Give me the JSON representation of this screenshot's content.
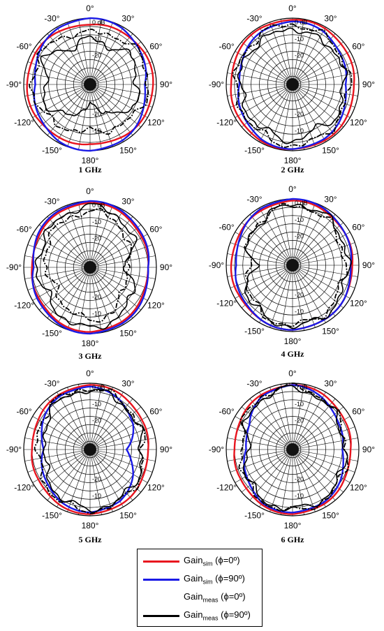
{
  "chart_data": [
    {
      "type": "polar",
      "caption": "1 GHz",
      "angle_ticks": [
        "0°",
        "30°",
        "60°",
        "90°",
        "120°",
        "150°",
        "180°",
        "-150°",
        "-120°",
        "-90°",
        "-60°",
        "-30°"
      ],
      "radial_ticks": [
        "0 dB",
        "-10",
        "-20"
      ],
      "rlim": [
        -40,
        0
      ],
      "series": [
        {
          "name": "Gainsim (φ=0°)",
          "samples_deg": [
            0,
            30,
            60,
            90,
            120,
            150,
            180,
            210,
            240,
            270,
            300,
            330
          ],
          "values_db": [
            -4,
            -3,
            -2,
            -2,
            -2,
            -3,
            -4,
            -3,
            -2,
            -2,
            -2,
            -3
          ]
        },
        {
          "name": "Gainsim (φ=90°)",
          "samples_deg": [
            0,
            30,
            60,
            90,
            120,
            150,
            180,
            210,
            240,
            270,
            300,
            330
          ],
          "values_db": [
            0,
            -1,
            -4,
            -7,
            -4,
            -1,
            0,
            -1,
            -4,
            -7,
            -4,
            -1
          ]
        },
        {
          "name": "Gainmeas (φ=0°)",
          "samples_deg": [
            0,
            30,
            60,
            90,
            120,
            150,
            180,
            210,
            240,
            270,
            300,
            330
          ],
          "values_db": [
            -9,
            -7,
            -5,
            -5,
            -7,
            -10,
            -12,
            -10,
            -7,
            -5,
            -5,
            -7
          ]
        },
        {
          "name": "Gainmeas (φ=90°)",
          "samples_deg": [
            0,
            30,
            60,
            90,
            120,
            150,
            180,
            210,
            240,
            270,
            300,
            330
          ],
          "values_db": [
            -12,
            -15,
            -9,
            -13,
            -9,
            -22,
            -28,
            -20,
            -10,
            -14,
            -8,
            -16
          ]
        }
      ]
    },
    {
      "type": "polar",
      "caption": "2 GHz",
      "angle_ticks": [
        "0°",
        "30°",
        "60°",
        "90°",
        "120°",
        "150°",
        "180°",
        "-150°",
        "-120°",
        "-90°",
        "-60°",
        "-30°"
      ],
      "radial_ticks": [
        "0 dB",
        "-10",
        "-20"
      ],
      "rlim": [
        -40,
        0
      ],
      "series": [
        {
          "name": "Gainsim (φ=0°)",
          "samples_deg": [
            0,
            30,
            60,
            90,
            120,
            150,
            180,
            210,
            240,
            270,
            300,
            330
          ],
          "values_db": [
            -1,
            -1,
            -2,
            -3,
            -2,
            -1,
            -1,
            -1,
            -2,
            -3,
            -2,
            -1
          ]
        },
        {
          "name": "Gainsim (φ=90°)",
          "samples_deg": [
            0,
            30,
            60,
            90,
            120,
            150,
            180,
            210,
            240,
            270,
            300,
            330
          ],
          "values_db": [
            -2,
            -3,
            -6,
            -8,
            -5,
            -2,
            -1,
            -2,
            -5,
            -8,
            -6,
            -3
          ]
        },
        {
          "name": "Gainmeas (φ=0°)",
          "samples_deg": [
            0,
            30,
            60,
            90,
            120,
            150,
            180,
            210,
            240,
            270,
            300,
            330
          ],
          "values_db": [
            -4,
            -5,
            -6,
            -6,
            -6,
            -4,
            -3,
            -5,
            -6,
            -5,
            -6,
            -4
          ]
        },
        {
          "name": "Gainmeas (φ=90°)",
          "samples_deg": [
            0,
            30,
            60,
            90,
            120,
            150,
            180,
            210,
            240,
            270,
            300,
            330
          ],
          "values_db": [
            -6,
            -9,
            -7,
            -10,
            -7,
            -10,
            -6,
            -8,
            -8,
            -9,
            -7,
            -8
          ]
        }
      ]
    },
    {
      "type": "polar",
      "caption": "3 GHz",
      "angle_ticks": [
        "0°",
        "30°",
        "60°",
        "90°",
        "120°",
        "150°",
        "180°",
        "-150°",
        "-120°",
        "-90°",
        "-60°",
        "-30°"
      ],
      "radial_ticks": [
        "0 dB",
        "-10",
        "-20"
      ],
      "rlim": [
        -40,
        0
      ],
      "series": [
        {
          "name": "Gainsim (φ=0°)",
          "samples_deg": [
            0,
            30,
            60,
            90,
            120,
            150,
            180,
            210,
            240,
            270,
            300,
            330
          ],
          "values_db": [
            -1,
            -2,
            -4,
            -5,
            -4,
            -2,
            -1,
            -2,
            -4,
            -5,
            -4,
            -2
          ]
        },
        {
          "name": "Gainsim (φ=90°)",
          "samples_deg": [
            0,
            30,
            60,
            90,
            120,
            150,
            180,
            210,
            240,
            270,
            300,
            330
          ],
          "values_db": [
            0,
            -1,
            -3,
            -5,
            -3,
            -1,
            0,
            -1,
            -3,
            -6,
            -3,
            -1
          ]
        },
        {
          "name": "Gainmeas (φ=0°)",
          "samples_deg": [
            0,
            30,
            60,
            90,
            120,
            150,
            180,
            210,
            240,
            270,
            300,
            330
          ],
          "values_db": [
            -6,
            -8,
            -14,
            -16,
            -18,
            -10,
            -8,
            -12,
            -16,
            -14,
            -10,
            -8
          ]
        },
        {
          "name": "Gainmeas (φ=90°)",
          "samples_deg": [
            0,
            30,
            60,
            90,
            120,
            150,
            180,
            210,
            240,
            270,
            300,
            330
          ],
          "values_db": [
            -3,
            -5,
            -10,
            -20,
            -10,
            -6,
            -3,
            -6,
            -10,
            -8,
            -8,
            -5
          ]
        }
      ]
    },
    {
      "type": "polar",
      "caption": "4 GHz",
      "angle_ticks": [
        "0°",
        "30°",
        "60°",
        "90°",
        "120°",
        "150°",
        "180°",
        "-150°",
        "-120°",
        "-90°",
        "-60°",
        "-30°"
      ],
      "radial_ticks": [
        "0 dB",
        "-10",
        "-20"
      ],
      "rlim": [
        -40,
        0
      ],
      "series": [
        {
          "name": "Gainsim (φ=0°)",
          "samples_deg": [
            0,
            30,
            60,
            90,
            120,
            150,
            180,
            210,
            240,
            270,
            300,
            330
          ],
          "values_db": [
            -1,
            -2,
            -3,
            -4,
            -3,
            -2,
            -1,
            -2,
            -3,
            -3,
            -3,
            -2
          ]
        },
        {
          "name": "Gainsim (φ=90°)",
          "samples_deg": [
            0,
            30,
            60,
            90,
            120,
            150,
            180,
            210,
            240,
            270,
            300,
            330
          ],
          "values_db": [
            0,
            -1,
            -3,
            -5,
            -3,
            -2,
            -1,
            -2,
            -4,
            -6,
            -4,
            -1
          ]
        },
        {
          "name": "Gainmeas (φ=0°)",
          "samples_deg": [
            0,
            30,
            60,
            90,
            120,
            150,
            180,
            210,
            240,
            270,
            300,
            330
          ],
          "values_db": [
            -4,
            -5,
            -8,
            -9,
            -8,
            -5,
            -4,
            -5,
            -10,
            -14,
            -10,
            -6
          ]
        },
        {
          "name": "Gainmeas (φ=90°)",
          "samples_deg": [
            0,
            30,
            60,
            90,
            120,
            150,
            180,
            210,
            240,
            270,
            300,
            330
          ],
          "values_db": [
            -3,
            -4,
            -6,
            -7,
            -6,
            -4,
            -3,
            -5,
            -8,
            -18,
            -9,
            -7
          ]
        }
      ]
    },
    {
      "type": "polar",
      "caption": "5 GHz",
      "angle_ticks": [
        "0°",
        "30°",
        "60°",
        "90°",
        "120°",
        "150°",
        "180°",
        "-150°",
        "-120°",
        "-90°",
        "-60°",
        "-30°"
      ],
      "radial_ticks": [
        "0 dB",
        "-10",
        "-20"
      ],
      "rlim": [
        -40,
        0
      ],
      "series": [
        {
          "name": "Gainsim (φ=0°)",
          "samples_deg": [
            0,
            30,
            60,
            90,
            120,
            150,
            180,
            210,
            240,
            270,
            300,
            330
          ],
          "values_db": [
            -1,
            -2,
            -4,
            -5,
            -4,
            -2,
            -1,
            -2,
            -4,
            -5,
            -4,
            -2
          ]
        },
        {
          "name": "Gainsim (φ=90°)",
          "samples_deg": [
            0,
            30,
            60,
            90,
            120,
            150,
            180,
            210,
            240,
            270,
            300,
            330
          ],
          "values_db": [
            -2,
            -5,
            -10,
            -18,
            -10,
            -4,
            -2,
            -4,
            -8,
            -12,
            -7,
            -3
          ]
        },
        {
          "name": "Gainmeas (φ=0°)",
          "samples_deg": [
            0,
            30,
            60,
            90,
            120,
            150,
            180,
            210,
            240,
            270,
            300,
            330
          ],
          "values_db": [
            -3,
            -5,
            -7,
            -8,
            -6,
            -4,
            -3,
            -4,
            -7,
            -9,
            -6,
            -4
          ]
        },
        {
          "name": "Gainmeas (φ=90°)",
          "samples_deg": [
            0,
            30,
            60,
            90,
            120,
            150,
            180,
            210,
            240,
            270,
            300,
            330
          ],
          "values_db": [
            -4,
            -6,
            -8,
            -9,
            -7,
            -5,
            -4,
            -6,
            -10,
            -14,
            -9,
            -5
          ]
        }
      ]
    },
    {
      "type": "polar",
      "caption": "6 GHz",
      "angle_ticks": [
        "0°",
        "30°",
        "60°",
        "90°",
        "120°",
        "150°",
        "180°",
        "-150°",
        "-120°",
        "-90°",
        "-60°",
        "-30°"
      ],
      "radial_ticks": [
        "0 dB",
        "-10",
        "-20"
      ],
      "rlim": [
        -40,
        0
      ],
      "series": [
        {
          "name": "Gainsim (φ=0°)",
          "samples_deg": [
            0,
            30,
            60,
            90,
            120,
            150,
            180,
            210,
            240,
            270,
            300,
            330
          ],
          "values_db": [
            -1,
            -2,
            -4,
            -5,
            -4,
            -2,
            -1,
            -2,
            -4,
            -5,
            -4,
            -2
          ]
        },
        {
          "name": "Gainsim (φ=90°)",
          "samples_deg": [
            0,
            30,
            60,
            90,
            120,
            150,
            180,
            210,
            240,
            270,
            300,
            330
          ],
          "values_db": [
            -1,
            -4,
            -8,
            -10,
            -6,
            -3,
            -2,
            -3,
            -8,
            -12,
            -10,
            -3
          ]
        },
        {
          "name": "Gainmeas (φ=0°)",
          "samples_deg": [
            0,
            30,
            60,
            90,
            120,
            150,
            180,
            210,
            240,
            270,
            300,
            330
          ],
          "values_db": [
            -2,
            -4,
            -7,
            -8,
            -6,
            -4,
            -3,
            -4,
            -7,
            -10,
            -6,
            -3
          ]
        },
        {
          "name": "Gainmeas (φ=90°)",
          "samples_deg": [
            0,
            30,
            60,
            90,
            120,
            150,
            180,
            210,
            240,
            270,
            300,
            330
          ],
          "values_db": [
            -3,
            -5,
            -8,
            -9,
            -7,
            -5,
            -4,
            -5,
            -8,
            -14,
            -8,
            -4
          ]
        }
      ]
    }
  ],
  "legend": {
    "entries": [
      {
        "base": "Gain",
        "sub": "sim",
        "cond": " (ϕ=0º)",
        "color": "#e8141e",
        "style": "solid"
      },
      {
        "base": "Gain",
        "sub": "sim",
        "cond": " (ϕ=90º)",
        "color": "#1a1ae6",
        "style": "solid"
      },
      {
        "base": "Gain",
        "sub": "meas",
        "cond": " (ϕ=0º)",
        "color": "#000000",
        "style": "dashdot"
      },
      {
        "base": "Gain",
        "sub": "meas",
        "cond": " (ϕ=90º)",
        "color": "#000000",
        "style": "solid"
      }
    ]
  },
  "colors": {
    "sim_phi0": "#e8141e",
    "sim_phi90": "#1a1ae6",
    "meas": "#000000",
    "grid": "#000000"
  }
}
